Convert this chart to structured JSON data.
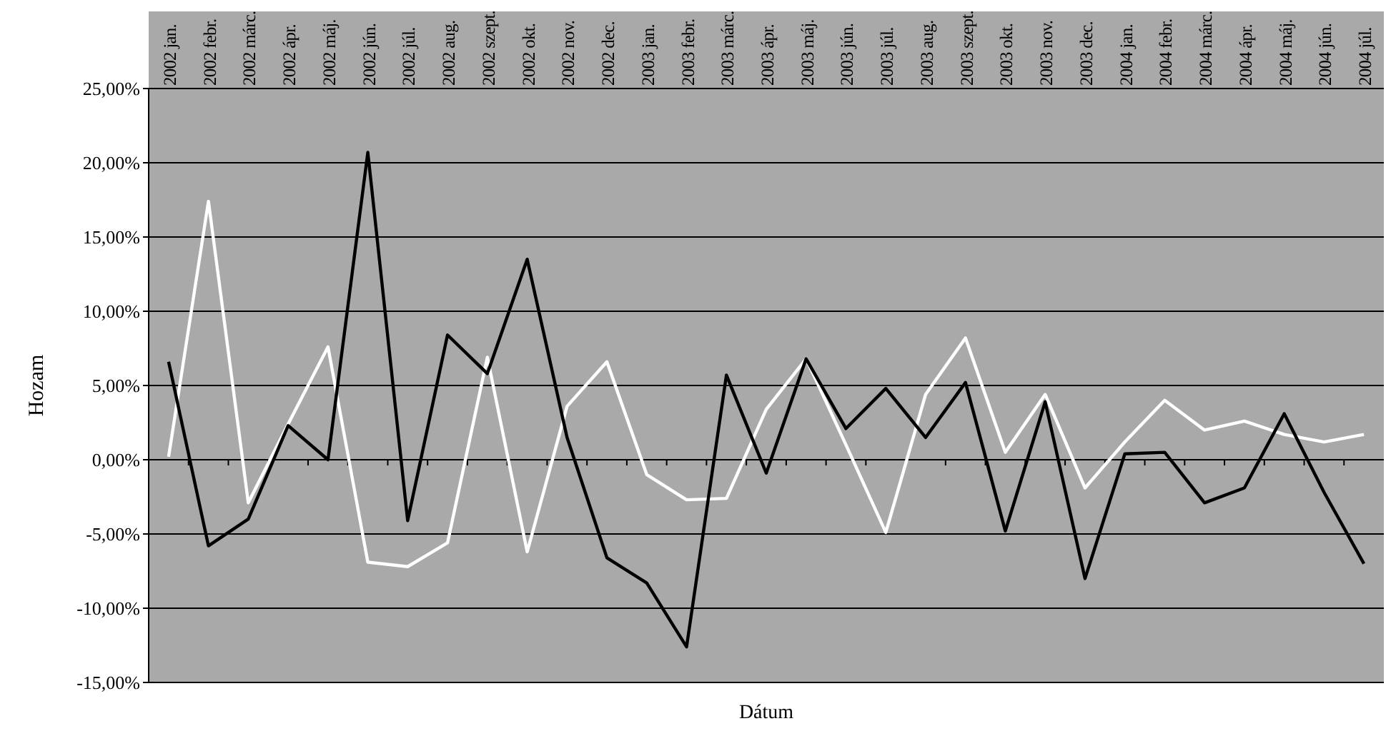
{
  "chart_data": {
    "type": "line",
    "xlabel": "Dátum",
    "ylabel": "Hozam",
    "categories": [
      "2002 jan.",
      "2002 febr.",
      "2002 márc.",
      "2002 ápr.",
      "2002 máj.",
      "2002 jún.",
      "2002 júl.",
      "2002 aug.",
      "2002 szept.",
      "2002 okt.",
      "2002 nov.",
      "2002 dec.",
      "2003 jan.",
      "2003 febr.",
      "2003 márc.",
      "2003 ápr.",
      "2003 máj.",
      "2003 jún.",
      "2003 júl.",
      "2003 aug.",
      "2003 szept.",
      "2003 okt.",
      "2003 nov.",
      "2003 dec.",
      "2004 jan.",
      "2004 febr.",
      "2004 márc.",
      "2004 ápr.",
      "2004 máj.",
      "2004 jún.",
      "2004 júl."
    ],
    "series": [
      {
        "color": "#ffffff",
        "values": [
          0.2,
          17.4,
          -2.9,
          2.4,
          7.6,
          -6.9,
          -7.2,
          -5.6,
          6.9,
          -6.2,
          3.6,
          6.6,
          -1.0,
          -2.7,
          -2.6,
          3.4,
          6.8,
          1.0,
          -4.9,
          4.4,
          8.2,
          0.5,
          4.4,
          -1.9,
          1.2,
          4.0,
          2.0,
          2.6,
          1.7,
          1.2,
          1.7
        ]
      },
      {
        "color": "#000000",
        "values": [
          6.6,
          -5.8,
          -4.0,
          2.3,
          0.0,
          20.7,
          -4.1,
          8.4,
          5.8,
          13.5,
          1.5,
          -6.6,
          -8.3,
          -12.6,
          5.7,
          -0.9,
          6.8,
          2.1,
          4.8,
          1.5,
          5.2,
          -4.8,
          3.9,
          -8.0,
          0.4,
          0.5,
          -2.9,
          -1.9,
          3.1,
          -2.2,
          -7.0
        ]
      }
    ],
    "ylim": [
      -15,
      25
    ],
    "yticks": [
      {
        "value": -15,
        "label": "-15,00%"
      },
      {
        "value": -10,
        "label": "-10,00%"
      },
      {
        "value": -5,
        "label": "-5,00%"
      },
      {
        "value": 0,
        "label": "0,00%"
      },
      {
        "value": 5,
        "label": "5,00%"
      },
      {
        "value": 10,
        "label": "10,00%"
      },
      {
        "value": 15,
        "label": "15,00%"
      },
      {
        "value": 20,
        "label": "20,00%"
      },
      {
        "value": 25,
        "label": "25,00%"
      }
    ],
    "grid": "y",
    "marker": "none",
    "line_style": "solid"
  }
}
